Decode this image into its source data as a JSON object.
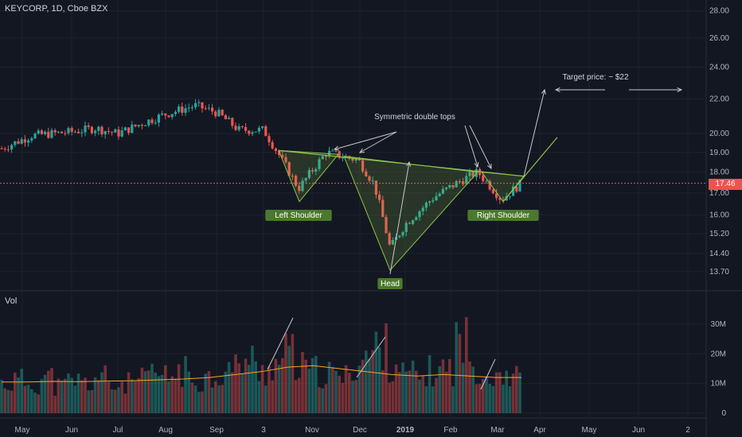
{
  "header": {
    "title": "KEYCORP, 1D, Cboe BZX"
  },
  "volume_pane": {
    "label": "Vol"
  },
  "last_price": "17.46",
  "colors": {
    "up": "#26a69a",
    "down": "#ef5350",
    "background": "#131722",
    "pattern": "#8bc34a",
    "annotation": "#c8c8c8",
    "volume_ma": "#f5a623"
  },
  "chart_data": [
    {
      "type": "candlestick",
      "title": "KEYCORP, 1D, Cboe BZX",
      "y_ticks": [
        "28.00",
        "26.00",
        "24.00",
        "22.00",
        "20.00",
        "19.00",
        "18.00",
        "17.00",
        "16.00",
        "15.20",
        "14.40",
        "13.70"
      ],
      "y_scale": "log",
      "x_ticks": [
        "May",
        "Jun",
        "Jul",
        "Aug",
        "Sep",
        "3",
        "Nov",
        "Dec",
        "2019",
        "Feb",
        "Mar",
        "Apr",
        "May",
        "Jun",
        "2"
      ],
      "x_ticks_bold": [
        "2019"
      ],
      "grid": true,
      "series": [
        {
          "type": "close",
          "points": [
            [
              "May",
              19.2
            ],
            [
              "May-mid",
              19.9
            ],
            [
              "Jun",
              20.1
            ],
            [
              "Jun-mid",
              20.3
            ],
            [
              "Jul",
              20.0
            ],
            [
              "Jul-mid",
              20.6
            ],
            [
              "Aug",
              21.1
            ],
            [
              "Aug-mid",
              21.6
            ],
            [
              "Sep",
              21.2
            ],
            [
              "Sep-mid",
              20.2
            ],
            [
              "3",
              20.2
            ],
            [
              "3-mid",
              17.2
            ],
            [
              "Nov",
              19.0
            ],
            [
              "Nov-mid",
              18.6
            ],
            [
              "Dec",
              17.4
            ],
            [
              "Dec-mid",
              14.6
            ],
            [
              "2019",
              15.6
            ],
            [
              "2019-mid",
              16.8
            ],
            [
              "Feb",
              17.5
            ],
            [
              "Feb-mid",
              18.0
            ],
            [
              "Mar",
              16.7
            ],
            [
              "Mar-end",
              17.46
            ]
          ]
        }
      ],
      "last_value": 17.46,
      "annotations": [
        {
          "text": "Symmetric double tops"
        },
        {
          "text": "Left Shoulder"
        },
        {
          "text": "Head"
        },
        {
          "text": "Right Shoulder"
        },
        {
          "text": "Target price: ~ $22"
        }
      ],
      "target_price": 22
    },
    {
      "type": "bar",
      "title": "Vol",
      "y_ticks": [
        "30M",
        "20M",
        "10M",
        "0"
      ],
      "series": [
        {
          "name": "Volume",
          "values_millions": [
            10,
            11,
            10,
            12,
            9,
            11,
            10,
            12,
            9,
            10,
            11,
            13,
            12,
            14,
            11,
            12,
            13,
            15,
            18,
            14,
            16,
            20,
            15,
            14,
            13,
            12,
            16,
            19,
            22,
            17,
            13,
            12,
            14,
            15,
            24,
            16,
            13,
            14,
            12,
            11,
            30
          ]
        },
        {
          "name": "Volume MA",
          "values_millions": [
            10.5,
            10.5,
            10.7,
            10.6,
            10.8,
            10.9,
            11.2,
            11.5,
            12,
            13,
            14,
            15.5,
            16,
            15,
            14,
            13,
            12.5,
            13,
            12.5,
            12,
            12
          ]
        }
      ]
    }
  ]
}
